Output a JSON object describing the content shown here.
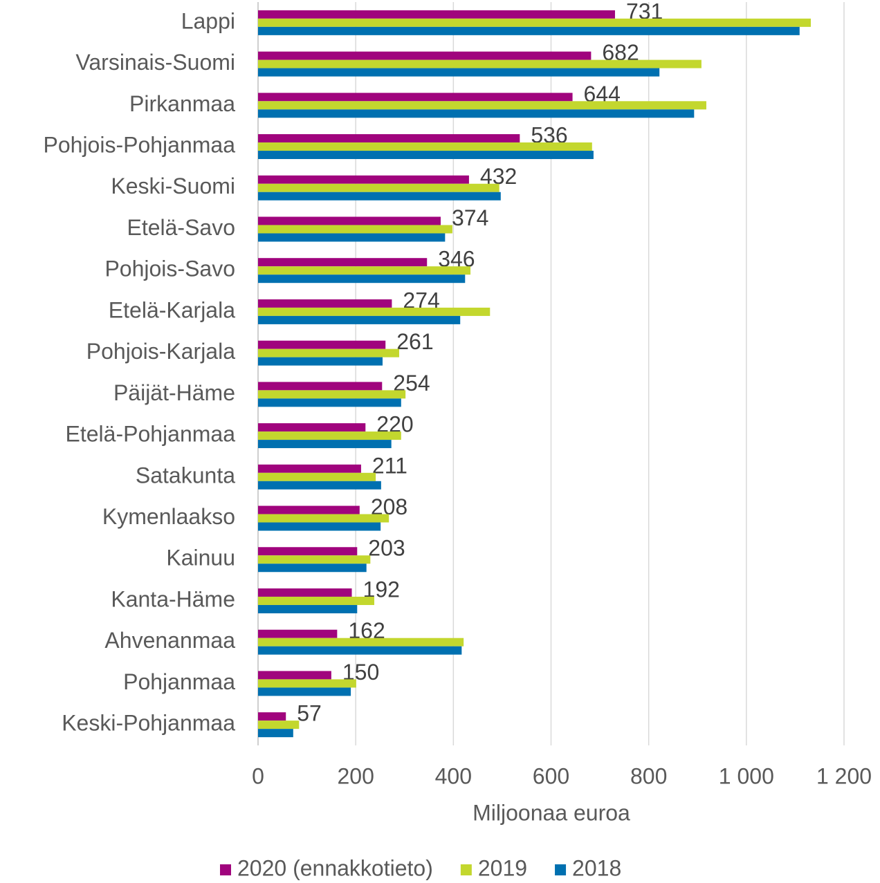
{
  "chart_data": {
    "type": "bar",
    "orientation": "horizontal",
    "x_label": "Miljoonaa euroa",
    "categories": [
      "Lappi",
      "Varsinais-Suomi",
      "Pirkanmaa",
      "Pohjois-Pohjanmaa",
      "Keski-Suomi",
      "Etelä-Savo",
      "Pohjois-Savo",
      "Etelä-Karjala",
      "Pohjois-Karjala",
      "Päijät-Häme",
      "Etelä-Pohjanmaa",
      "Satakunta",
      "Kymenlaakso",
      "Kainuu",
      "Kanta-Häme",
      "Ahvenanmaa",
      "Pohjanmaa",
      "Keski-Pohjanmaa"
    ],
    "series": [
      {
        "name": "2020 (ennakkotieto)",
        "color": "#a0047d",
        "values": [
          731,
          682,
          644,
          536,
          432,
          374,
          346,
          274,
          261,
          254,
          220,
          211,
          208,
          203,
          192,
          162,
          150,
          57
        ],
        "data_labels": true
      },
      {
        "name": "2019",
        "color": "#c3d72e",
        "values": [
          1132,
          908,
          918,
          684,
          494,
          398,
          435,
          475,
          289,
          302,
          293,
          241,
          268,
          230,
          238,
          421,
          201,
          84
        ]
      },
      {
        "name": "2018",
        "color": "#0070b0",
        "values": [
          1109,
          822,
          893,
          687,
          497,
          383,
          424,
          414,
          255,
          293,
          273,
          252,
          251,
          222,
          203,
          417,
          190,
          72
        ]
      }
    ],
    "xlim": [
      0,
      1200
    ],
    "xticks": [
      0,
      200,
      400,
      600,
      800,
      {
        "value": 1000,
        "label": "1 000"
      },
      {
        "value": 1200,
        "label": "1 200"
      }
    ],
    "grid": true,
    "legend": "bottom"
  }
}
